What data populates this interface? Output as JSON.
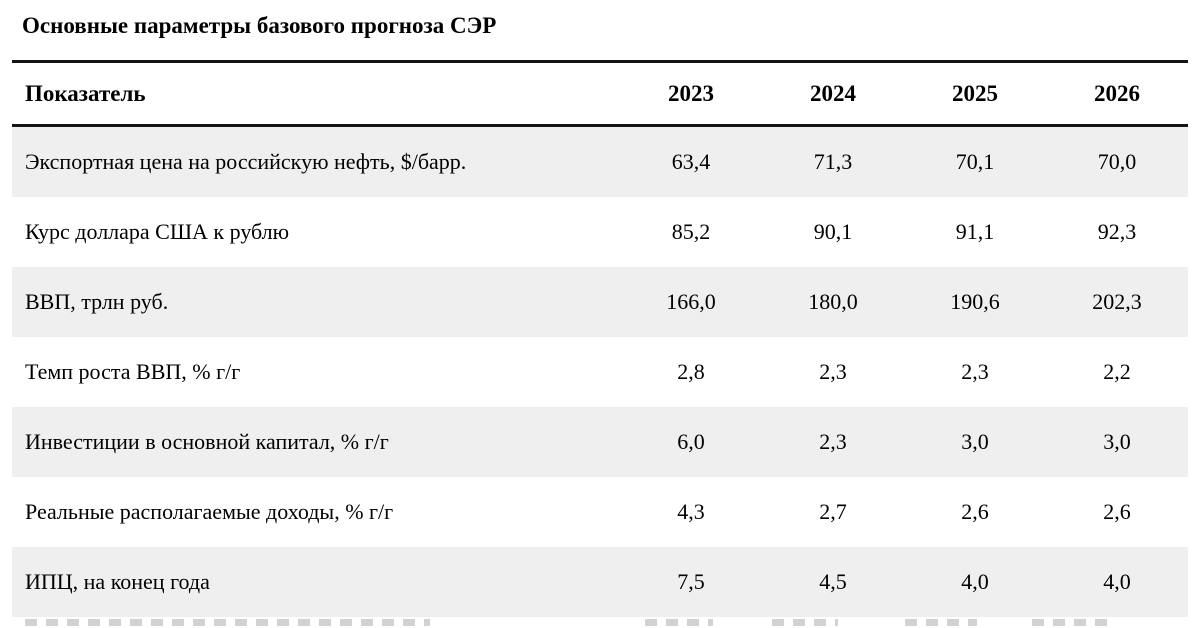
{
  "chart_data": {
    "type": "table",
    "title": "Основные параметры базового прогноза СЭР",
    "columns": [
      "Показатель",
      "2023",
      "2024",
      "2025",
      "2026"
    ],
    "rows": [
      {
        "label": "Экспортная цена на российскую нефть, $/барр.",
        "values": [
          "63,4",
          "71,3",
          "70,1",
          "70,0"
        ]
      },
      {
        "label": "Курс доллара США к рублю",
        "values": [
          "85,2",
          "90,1",
          "91,1",
          "92,3"
        ]
      },
      {
        "label": "ВВП, трлн руб.",
        "values": [
          "166,0",
          "180,0",
          "190,6",
          "202,3"
        ]
      },
      {
        "label": "Темп роста ВВП, % г/г",
        "values": [
          "2,8",
          "2,3",
          "2,3",
          "2,2"
        ]
      },
      {
        "label": "Инвестиции в основной капитал, % г/г",
        "values": [
          "6,0",
          "2,3",
          "3,0",
          "3,0"
        ]
      },
      {
        "label": "Реальные располагаемые доходы, % г/г",
        "values": [
          "4,3",
          "2,7",
          "2,6",
          "2,6"
        ]
      },
      {
        "label": "ИПЦ, на конец года",
        "values": [
          "7,5",
          "4,5",
          "4,0",
          "4,0"
        ]
      }
    ],
    "layout": {
      "zebra_striping": true,
      "truncated_row_at_bottom": true
    }
  },
  "colors": {
    "background": "#ffffff",
    "text": "#000000",
    "rule": "#141414",
    "row_shade": "#efefef"
  }
}
